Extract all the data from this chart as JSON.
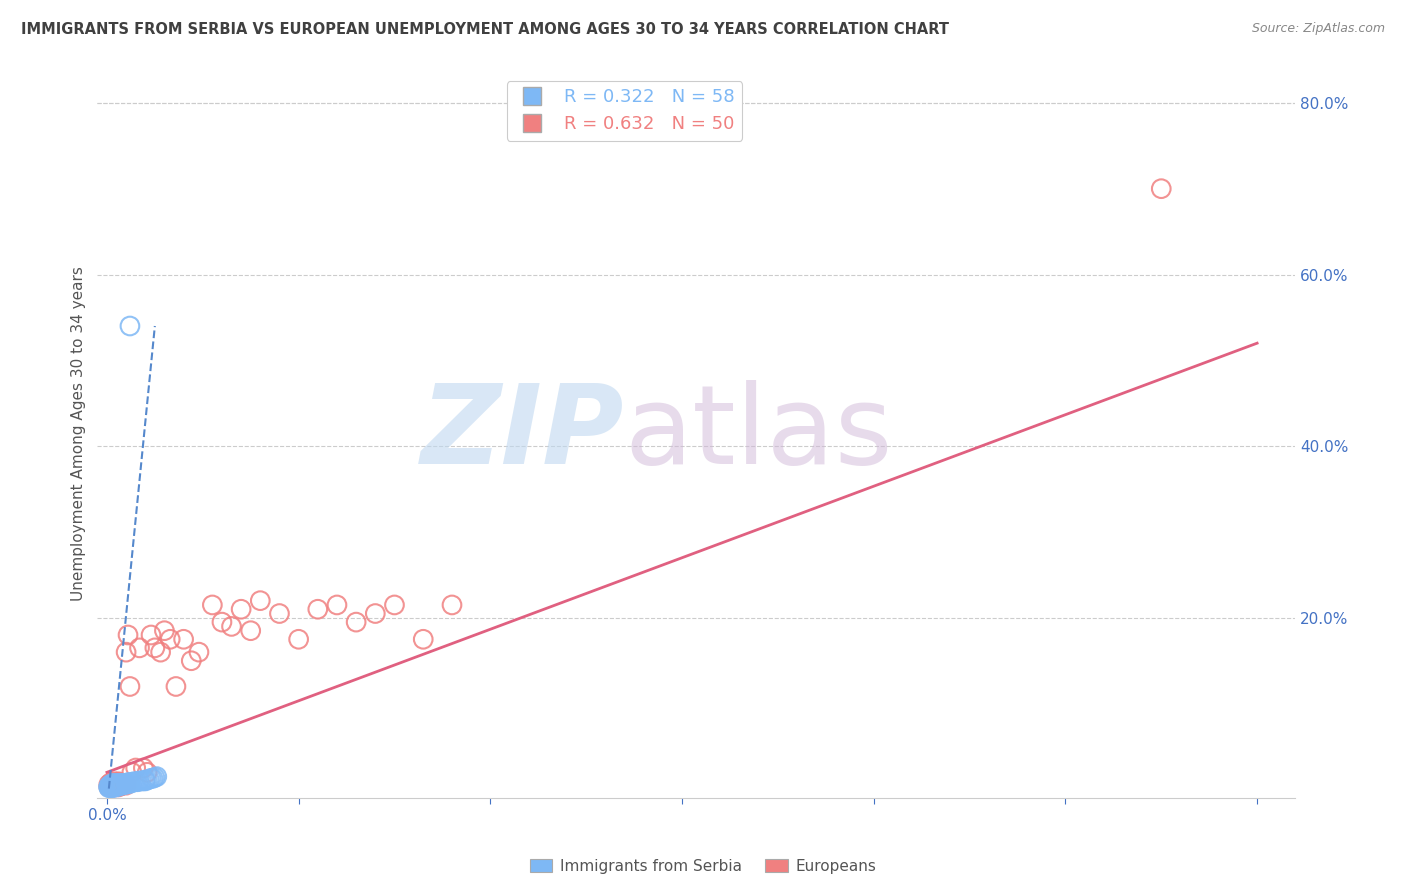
{
  "title": "IMMIGRANTS FROM SERBIA VS EUROPEAN UNEMPLOYMENT AMONG AGES 30 TO 34 YEARS CORRELATION CHART",
  "source": "Source: ZipAtlas.com",
  "ylabel": "Unemployment Among Ages 30 to 34 years",
  "xlim": [
    -0.005,
    0.62
  ],
  "ylim": [
    -0.01,
    0.84
  ],
  "xticks": [
    0.0,
    0.1,
    0.2,
    0.3,
    0.4,
    0.5,
    0.6
  ],
  "yticks_right": [
    0.2,
    0.4,
    0.6,
    0.8
  ],
  "blue_R": 0.322,
  "blue_N": 58,
  "pink_R": 0.632,
  "pink_N": 50,
  "blue_color": "#7EB8F5",
  "pink_color": "#F08080",
  "blue_trend_color": "#5588CC",
  "pink_trend_color": "#E06080",
  "axis_label_color": "#4472C4",
  "title_color": "#404040",
  "grid_color": "#CCCCCC",
  "blue_scatter_x": [
    0.001,
    0.001,
    0.001,
    0.002,
    0.002,
    0.002,
    0.002,
    0.002,
    0.003,
    0.003,
    0.003,
    0.003,
    0.003,
    0.003,
    0.004,
    0.004,
    0.004,
    0.004,
    0.004,
    0.005,
    0.005,
    0.005,
    0.005,
    0.005,
    0.006,
    0.006,
    0.006,
    0.006,
    0.007,
    0.007,
    0.007,
    0.008,
    0.008,
    0.008,
    0.009,
    0.009,
    0.01,
    0.01,
    0.011,
    0.011,
    0.012,
    0.012,
    0.013,
    0.014,
    0.015,
    0.016,
    0.017,
    0.018,
    0.019,
    0.02,
    0.02,
    0.021,
    0.022,
    0.023,
    0.024,
    0.025,
    0.026,
    0.012
  ],
  "blue_scatter_y": [
    0.002,
    0.003,
    0.004,
    0.002,
    0.003,
    0.004,
    0.005,
    0.006,
    0.002,
    0.003,
    0.004,
    0.005,
    0.006,
    0.007,
    0.003,
    0.004,
    0.005,
    0.006,
    0.007,
    0.003,
    0.004,
    0.005,
    0.006,
    0.007,
    0.004,
    0.005,
    0.006,
    0.007,
    0.005,
    0.006,
    0.007,
    0.005,
    0.006,
    0.007,
    0.006,
    0.007,
    0.006,
    0.007,
    0.007,
    0.008,
    0.007,
    0.008,
    0.008,
    0.009,
    0.009,
    0.009,
    0.01,
    0.01,
    0.01,
    0.01,
    0.011,
    0.011,
    0.012,
    0.013,
    0.013,
    0.014,
    0.015,
    0.54
  ],
  "pink_scatter_x": [
    0.001,
    0.001,
    0.002,
    0.002,
    0.003,
    0.003,
    0.004,
    0.004,
    0.005,
    0.005,
    0.006,
    0.006,
    0.007,
    0.007,
    0.008,
    0.009,
    0.01,
    0.01,
    0.011,
    0.012,
    0.013,
    0.015,
    0.017,
    0.019,
    0.021,
    0.023,
    0.025,
    0.028,
    0.03,
    0.033,
    0.036,
    0.04,
    0.044,
    0.048,
    0.055,
    0.06,
    0.065,
    0.07,
    0.075,
    0.08,
    0.09,
    0.1,
    0.11,
    0.12,
    0.13,
    0.14,
    0.15,
    0.165,
    0.18,
    0.55
  ],
  "pink_scatter_y": [
    0.003,
    0.006,
    0.003,
    0.008,
    0.004,
    0.007,
    0.003,
    0.009,
    0.004,
    0.007,
    0.003,
    0.009,
    0.004,
    0.008,
    0.005,
    0.006,
    0.005,
    0.16,
    0.18,
    0.12,
    0.02,
    0.025,
    0.165,
    0.025,
    0.02,
    0.18,
    0.165,
    0.16,
    0.185,
    0.175,
    0.12,
    0.175,
    0.15,
    0.16,
    0.215,
    0.195,
    0.19,
    0.21,
    0.185,
    0.22,
    0.205,
    0.175,
    0.21,
    0.215,
    0.195,
    0.205,
    0.215,
    0.175,
    0.215,
    0.7
  ],
  "pink_trend_x0": 0.0,
  "pink_trend_y0": 0.02,
  "pink_trend_x1": 0.6,
  "pink_trend_y1": 0.52,
  "blue_trend_x0": 0.001,
  "blue_trend_y0": 0.001,
  "blue_trend_x1": 0.025,
  "blue_trend_y1": 0.54
}
